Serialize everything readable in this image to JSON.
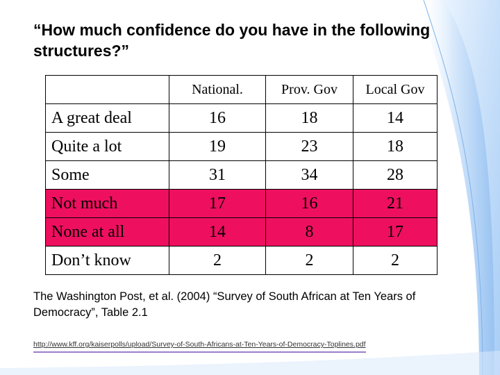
{
  "slide": {
    "title": "“How much confidence do you have in the following structures?”",
    "citation": "The Washington Post, et al. (2004) “Survey of South African at Ten Years of Democracy”, Table 2.1",
    "url": "http://www.kff.org/kaiserpolls/upload/Survey-of-South-Africans-at-Ten-Years-of-Democracy-Toplines.pdf",
    "highlight_color": "#ee0f5f",
    "accent_color": "#a6c8f0"
  },
  "table": {
    "columns": [
      "",
      "National.",
      "Prov. Gov",
      "Local Gov"
    ],
    "rows": [
      {
        "label": "A great deal",
        "values": [
          "16",
          "18",
          "14"
        ],
        "highlighted": false
      },
      {
        "label": "Quite a lot",
        "values": [
          "19",
          "23",
          "18"
        ],
        "highlighted": false
      },
      {
        "label": "Some",
        "values": [
          "31",
          "34",
          "28"
        ],
        "highlighted": false
      },
      {
        "label": "Not much",
        "values": [
          "17",
          "16",
          "21"
        ],
        "highlighted": true
      },
      {
        "label": "None at all",
        "values": [
          "14",
          "8",
          "17"
        ],
        "highlighted": true
      },
      {
        "label": "Don’t know",
        "values": [
          "2",
          "2",
          "2"
        ],
        "highlighted": false
      }
    ]
  }
}
